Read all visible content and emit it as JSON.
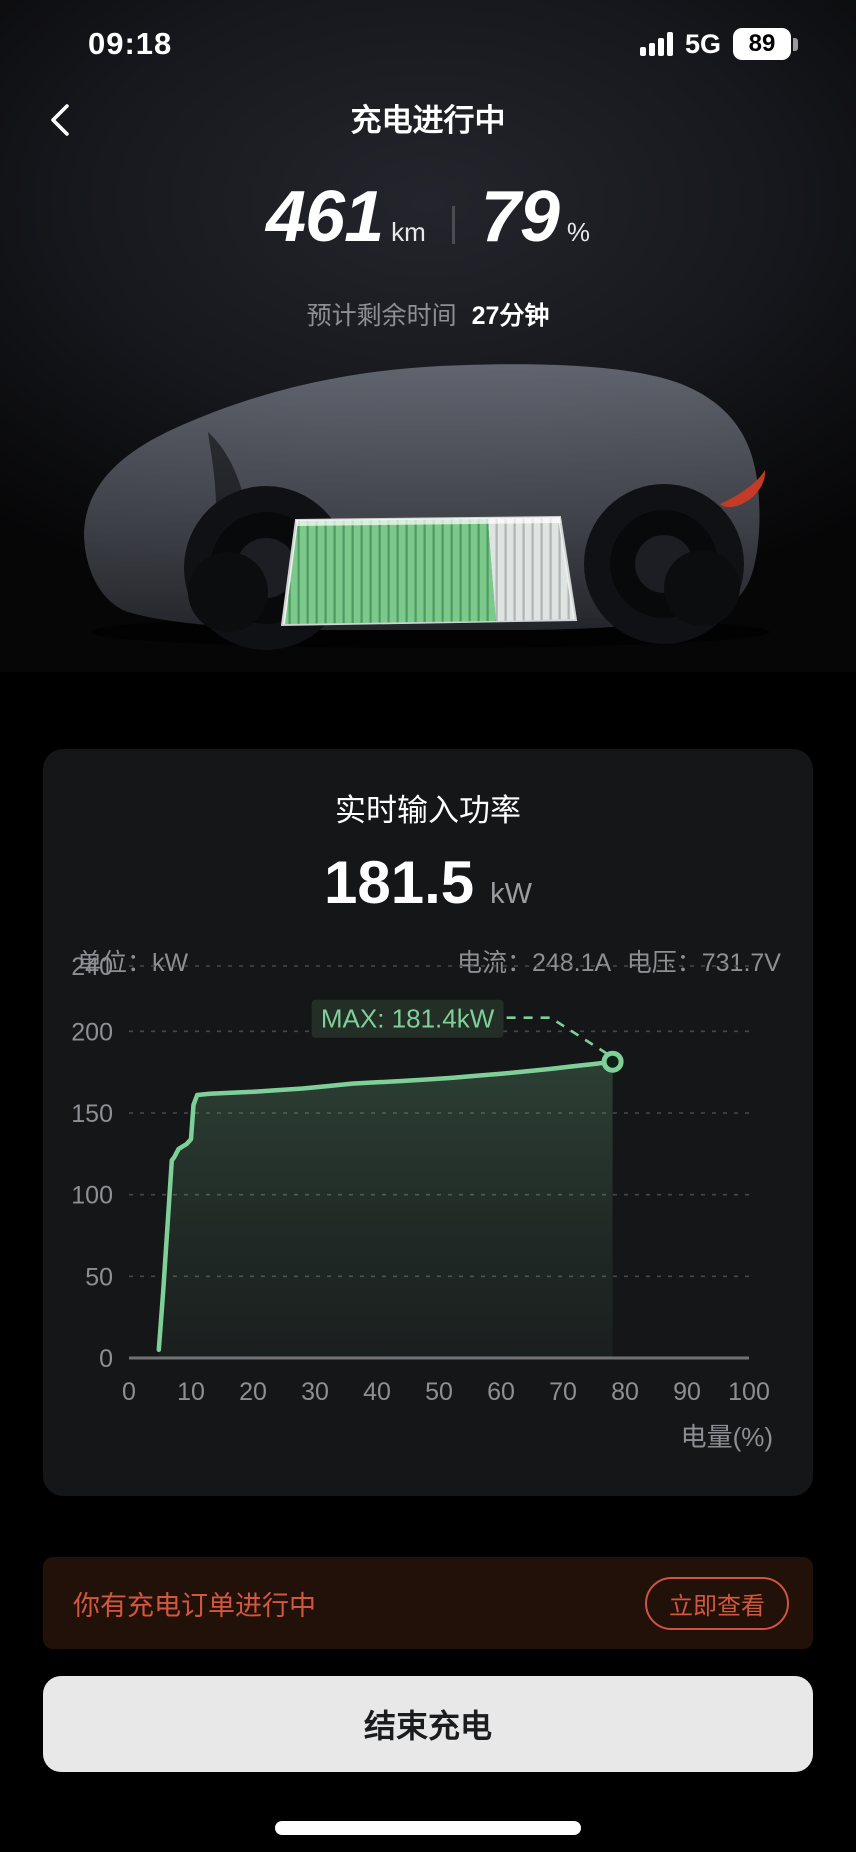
{
  "status_bar": {
    "time": "09:18",
    "network": "5G",
    "battery_percent": "89"
  },
  "header": {
    "title": "充电进行中"
  },
  "summary": {
    "range_value": "461",
    "range_unit": "km",
    "soc_value": "79",
    "soc_unit": "%",
    "eta_label": "预计剩余时间",
    "eta_value": "27分钟"
  },
  "power_card": {
    "title": "实时输入功率",
    "power_value": "181.5",
    "power_unit": "kW",
    "unit_label": "单位：kW",
    "current_text": "电流：248.1A",
    "voltage_text": "电压：731.7V"
  },
  "chart_data": {
    "type": "area",
    "title": "实时输入功率",
    "xlabel": "电量(%)",
    "ylabel": "单位：kW",
    "xlim": [
      0,
      100
    ],
    "ylim": [
      0,
      240
    ],
    "xticks": [
      0,
      10,
      20,
      30,
      40,
      50,
      60,
      70,
      80,
      90,
      100
    ],
    "yticks": [
      0,
      50,
      100,
      150,
      200,
      240
    ],
    "grid": "dashed horizontal",
    "line_color": "#7fd098",
    "x": [
      4.8,
      5.5,
      6.9,
      7.3,
      8.0,
      9.3,
      10.0,
      10.4,
      11,
      13,
      16,
      20,
      24,
      28,
      32,
      36,
      40,
      44,
      48,
      52,
      56,
      60,
      64,
      68,
      72,
      75,
      78
    ],
    "y": [
      5,
      40,
      121,
      123,
      128,
      131,
      134,
      155,
      161,
      161.8,
      162.3,
      163,
      164,
      165,
      166.5,
      168,
      168.8,
      169.6,
      170.5,
      171.5,
      172.8,
      174,
      175.5,
      177,
      178.8,
      180,
      181.4
    ],
    "annotation": {
      "label": "MAX: 181.4kW",
      "x": 78,
      "y": 181.4
    }
  },
  "banner": {
    "text": "你有充电订单进行中",
    "action_label": "立即查看"
  },
  "footer": {
    "end_button_label": "结束充电"
  },
  "colors": {
    "accent_green": "#7fd098",
    "battery_green": "#7cc98b",
    "alert_red": "#d2573f",
    "taillight_red": "#c63b28",
    "card_bg": "#151618",
    "banner_bg": "#221108"
  }
}
